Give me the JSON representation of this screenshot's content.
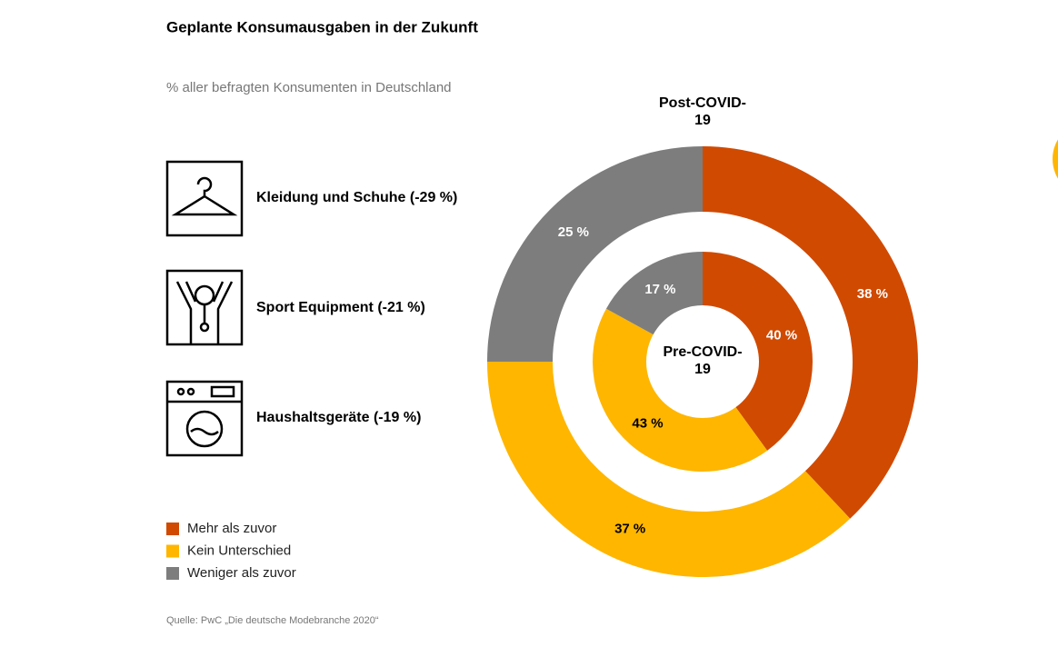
{
  "chart_data": {
    "type": "pie",
    "title": "Geplante Konsumausgaben in der Zukunft",
    "subtitle": "% aller befragten Konsumenten in Deutschland",
    "annotations": [
      "Kleidung und Schuhe (-29 %)",
      "Sport Equipment (-21 %)",
      "Haushaltsgeräte (-19 %)"
    ],
    "source": "Quelle: PwC „Die deutsche Modebranche 2020“",
    "categories": [
      "Mehr als zuvor",
      "Kein Unterschied",
      "Weniger als zuvor"
    ],
    "colors": [
      "#d04a02",
      "#ffb600",
      "#7d7d7d"
    ],
    "series": [
      {
        "name": "Post-COVID-19",
        "values": [
          38,
          37,
          25
        ],
        "value_labels": [
          "38 %",
          "37 %",
          "25 %"
        ]
      },
      {
        "name": "Pre-COVID-19",
        "values": [
          40,
          43,
          17
        ],
        "value_labels": [
          "40 %",
          "43 %",
          "17 %"
        ]
      }
    ],
    "legend": "bottom-left"
  }
}
